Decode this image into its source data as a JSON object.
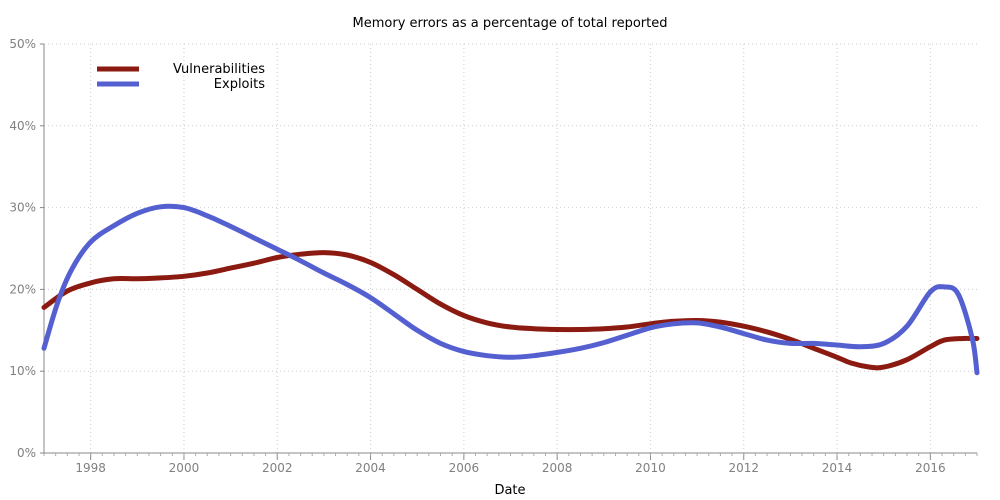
{
  "chart_data": {
    "type": "line",
    "title": "Memory errors as a percentage of total reported",
    "xlabel": "Date",
    "ylabel": "",
    "x_ticks": [
      "1998",
      "2000",
      "2002",
      "2004",
      "2006",
      "2008",
      "2010",
      "2012",
      "2014",
      "2016"
    ],
    "y_ticks": [
      "0%",
      "10%",
      "20%",
      "30%",
      "40%",
      "50%"
    ],
    "xlim": [
      1997,
      2017
    ],
    "ylim": [
      0,
      50
    ],
    "grid": true,
    "legend_position": "top-left",
    "series": [
      {
        "name": "Vulnerabilities",
        "color": "#8b1a10",
        "x": [
          1997,
          1997.5,
          1998,
          1998.5,
          1999,
          1999.5,
          2000,
          2000.5,
          2001,
          2001.5,
          2002,
          2002.5,
          2003,
          2003.5,
          2004,
          2004.5,
          2005,
          2005.5,
          2006,
          2006.5,
          2007,
          2007.5,
          2008,
          2008.5,
          2009,
          2009.5,
          2010,
          2010.5,
          2011,
          2011.5,
          2012,
          2012.5,
          2013,
          2013.5,
          2014,
          2014.3,
          2014.7,
          2015,
          2015.5,
          2016,
          2016.3,
          2016.7,
          2017
        ],
        "y": [
          17.8,
          19.8,
          20.8,
          21.3,
          21.3,
          21.4,
          21.6,
          22.0,
          22.6,
          23.2,
          23.9,
          24.3,
          24.5,
          24.2,
          23.3,
          21.8,
          20.0,
          18.2,
          16.8,
          15.9,
          15.4,
          15.2,
          15.1,
          15.1,
          15.2,
          15.4,
          15.8,
          16.1,
          16.2,
          16.0,
          15.5,
          14.8,
          13.9,
          12.8,
          11.7,
          11.0,
          10.5,
          10.5,
          11.4,
          13.0,
          13.8,
          14.0,
          14.0
        ]
      },
      {
        "name": "Exploits",
        "color": "#5560d0",
        "x": [
          1997,
          1997.3,
          1997.6,
          1998,
          1998.5,
          1999,
          1999.5,
          2000,
          2000.5,
          2001,
          2001.5,
          2002,
          2002.5,
          2003,
          2003.5,
          2004,
          2004.5,
          2005,
          2005.5,
          2006,
          2006.5,
          2007,
          2007.5,
          2008,
          2008.5,
          2009,
          2009.5,
          2010,
          2010.5,
          2011,
          2011.5,
          2012,
          2012.5,
          2013,
          2013.5,
          2014,
          2014.5,
          2015,
          2015.5,
          2016,
          2016.3,
          2016.6,
          2016.9,
          2017
        ],
        "y": [
          12.8,
          18.5,
          22.5,
          25.8,
          27.8,
          29.3,
          30.1,
          30.0,
          29.0,
          27.7,
          26.3,
          24.9,
          23.5,
          22.0,
          20.6,
          19.0,
          17.0,
          15.0,
          13.4,
          12.4,
          11.9,
          11.7,
          11.9,
          12.3,
          12.8,
          13.5,
          14.4,
          15.3,
          15.8,
          15.9,
          15.4,
          14.6,
          13.8,
          13.4,
          13.4,
          13.2,
          13.0,
          13.4,
          15.5,
          19.7,
          20.3,
          19.4,
          14.0,
          9.8
        ]
      }
    ]
  }
}
